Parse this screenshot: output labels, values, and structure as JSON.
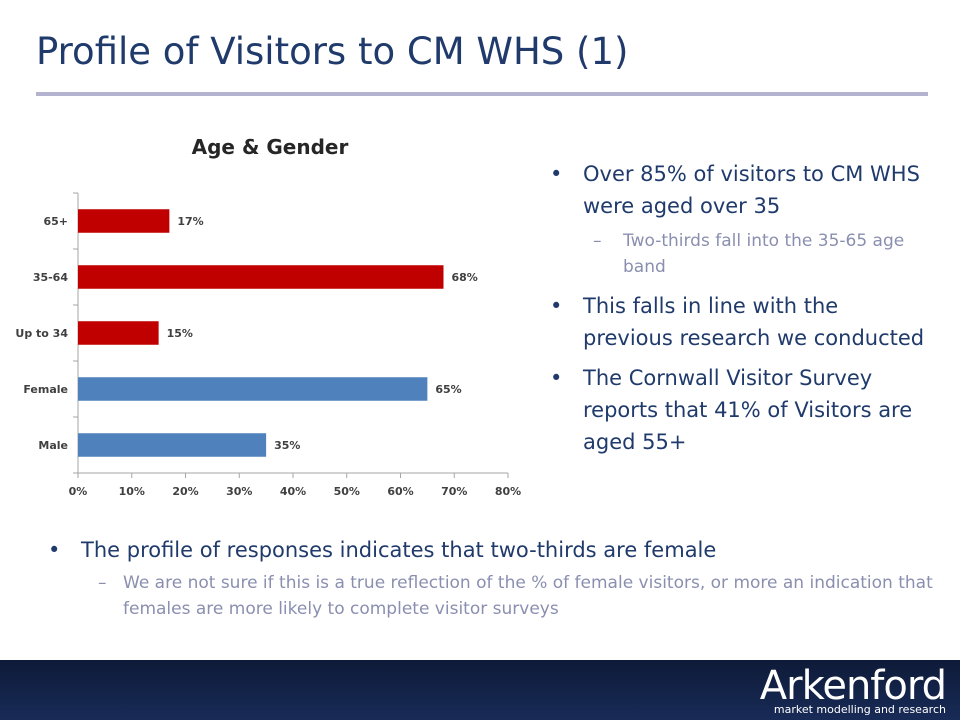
{
  "slide": {
    "title": "Profile of Visitors to CM WHS (1)"
  },
  "right_notes": {
    "bullet1": "Over 85% of visitors to CM WHS were aged over 35",
    "sub1": "Two-thirds fall into the 35-65 age band",
    "bullet2": "This falls in line with the previous research we conducted",
    "bullet3": "The Cornwall Visitor Survey reports that 41% of Visitors are aged 55+"
  },
  "bottom_notes": {
    "bullet1": "The profile of responses indicates that two-thirds are female",
    "sub1": "We are not sure if this is a true reflection of the % of female visitors, or more an indication that females are more likely to complete visitor surveys"
  },
  "logo": {
    "name": "Arkenford",
    "tagline": "market modelling and research"
  },
  "colors": {
    "age_bars": "#c00000",
    "gender_bars": "#4f81bd",
    "title": "#1f3a6b",
    "footer": "#0e1a38"
  },
  "chart_data": {
    "type": "bar",
    "orientation": "horizontal",
    "title": "Age & Gender",
    "categories": [
      "65+",
      "35-64",
      "Up to 34",
      "Female",
      "Male"
    ],
    "values": [
      17,
      68,
      15,
      65,
      35
    ],
    "value_labels": [
      "17%",
      "68%",
      "15%",
      "65%",
      "35%"
    ],
    "groups": [
      "age",
      "age",
      "age",
      "gender",
      "gender"
    ],
    "xlim": [
      0,
      80
    ],
    "x_ticks": [
      "0%",
      "10%",
      "20%",
      "30%",
      "40%",
      "50%",
      "60%",
      "70%",
      "80%"
    ],
    "grid": false,
    "legend": "none"
  }
}
